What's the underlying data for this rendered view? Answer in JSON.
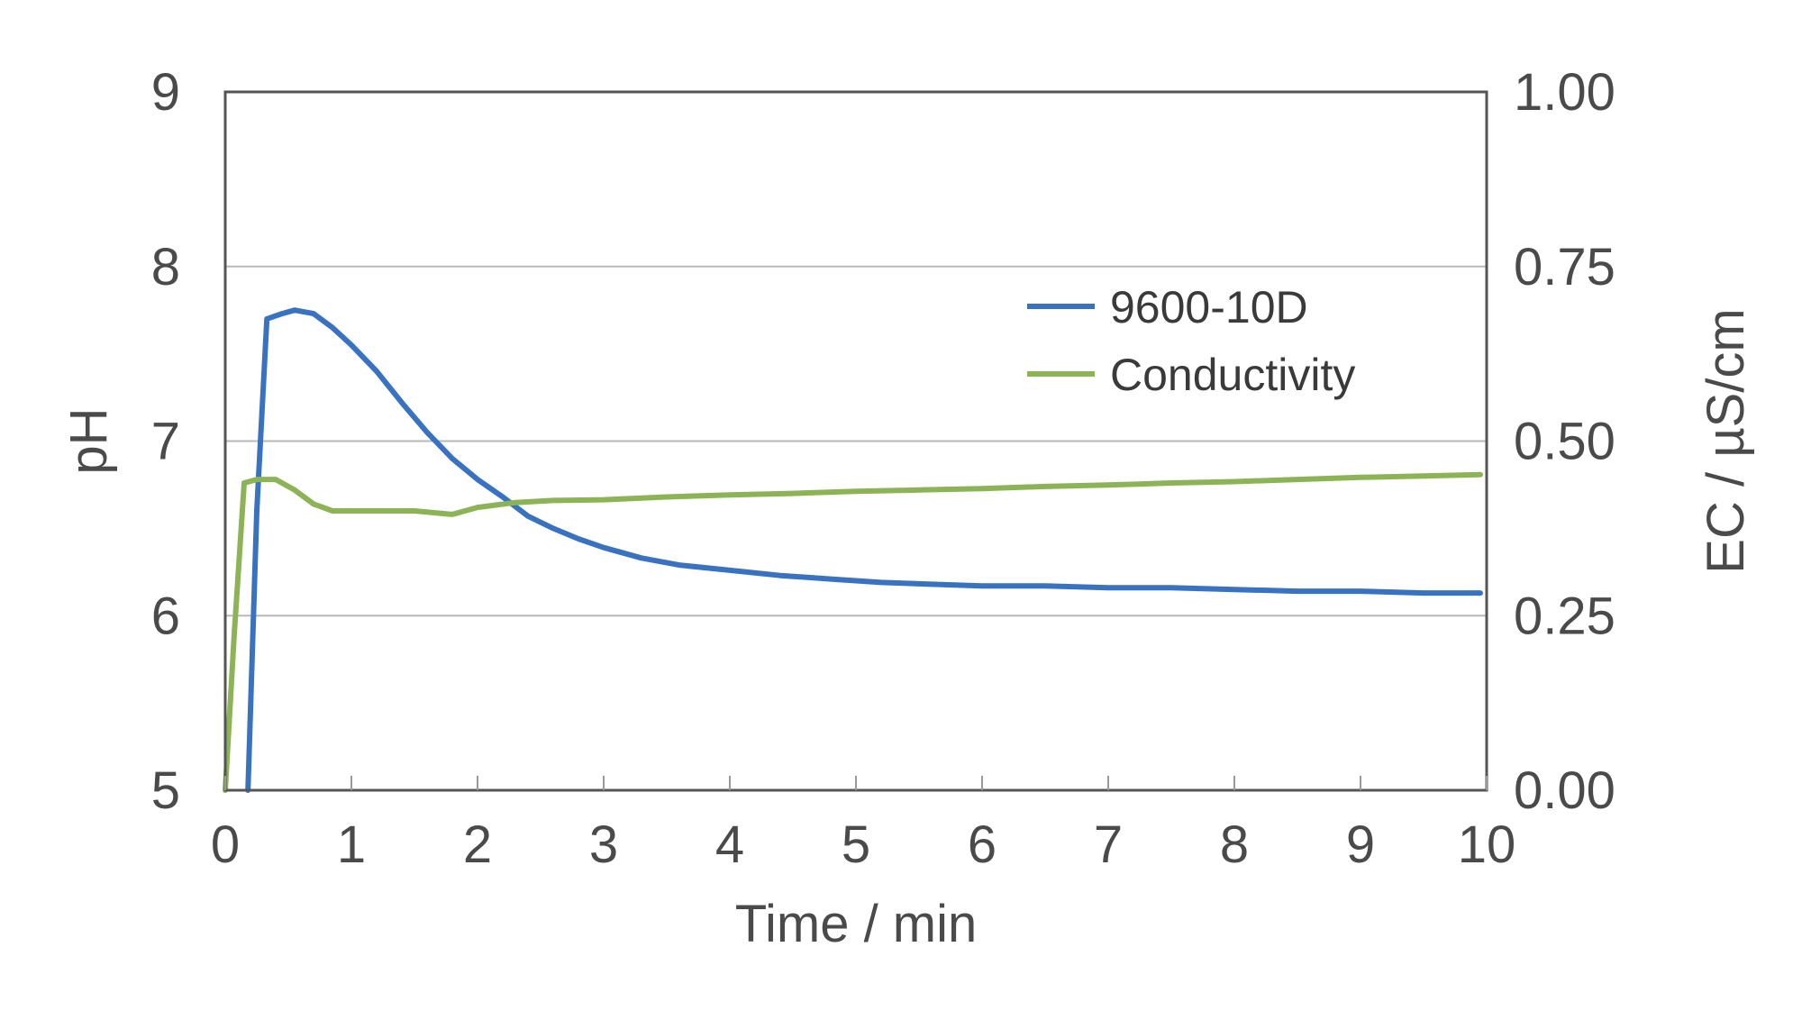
{
  "chart_data": {
    "type": "line",
    "title": "",
    "xlabel": "Time / min",
    "ylabel": "pH",
    "y2label": "EC / µS/cm",
    "xlim": [
      0,
      10
    ],
    "ylim": [
      5,
      9
    ],
    "y2lim": [
      0,
      1
    ],
    "x_ticks": [
      "0",
      "1",
      "2",
      "3",
      "4",
      "5",
      "6",
      "7",
      "8",
      "9",
      "10"
    ],
    "y_ticks": [
      "5",
      "6",
      "7",
      "8",
      "9"
    ],
    "y2_ticks": [
      "0.00",
      "0.25",
      "0.50",
      "0.75",
      "1.00"
    ],
    "grid": "horizontal",
    "legend_position": "top-right",
    "series": [
      {
        "name": "9600-10D",
        "axis": "left",
        "color": "#3a72c2",
        "points": [
          [
            0.18,
            5.0
          ],
          [
            0.25,
            6.6
          ],
          [
            0.33,
            7.7
          ],
          [
            0.45,
            7.73
          ],
          [
            0.55,
            7.75
          ],
          [
            0.7,
            7.73
          ],
          [
            0.85,
            7.65
          ],
          [
            1.0,
            7.55
          ],
          [
            1.2,
            7.4
          ],
          [
            1.4,
            7.22
          ],
          [
            1.6,
            7.05
          ],
          [
            1.8,
            6.9
          ],
          [
            2.0,
            6.78
          ],
          [
            2.2,
            6.68
          ],
          [
            2.4,
            6.57
          ],
          [
            2.6,
            6.5
          ],
          [
            2.8,
            6.44
          ],
          [
            3.0,
            6.39
          ],
          [
            3.3,
            6.33
          ],
          [
            3.6,
            6.29
          ],
          [
            4.0,
            6.26
          ],
          [
            4.4,
            6.23
          ],
          [
            4.8,
            6.21
          ],
          [
            5.2,
            6.19
          ],
          [
            5.6,
            6.18
          ],
          [
            6.0,
            6.17
          ],
          [
            6.5,
            6.17
          ],
          [
            7.0,
            6.16
          ],
          [
            7.5,
            6.16
          ],
          [
            8.0,
            6.15
          ],
          [
            8.5,
            6.14
          ],
          [
            9.0,
            6.14
          ],
          [
            9.5,
            6.13
          ],
          [
            9.95,
            6.13
          ]
        ]
      },
      {
        "name": "Conductivity",
        "axis": "right",
        "color": "#8db357",
        "points": [
          [
            0.0,
            0.0
          ],
          [
            0.07,
            0.22
          ],
          [
            0.15,
            0.44
          ],
          [
            0.25,
            0.445
          ],
          [
            0.4,
            0.445
          ],
          [
            0.55,
            0.43
          ],
          [
            0.7,
            0.41
          ],
          [
            0.85,
            0.4
          ],
          [
            1.2,
            0.4
          ],
          [
            1.5,
            0.4
          ],
          [
            1.8,
            0.395
          ],
          [
            2.0,
            0.405
          ],
          [
            2.3,
            0.412
          ],
          [
            2.6,
            0.415
          ],
          [
            3.0,
            0.416
          ],
          [
            3.5,
            0.42
          ],
          [
            4.0,
            0.423
          ],
          [
            4.5,
            0.425
          ],
          [
            5.0,
            0.428
          ],
          [
            5.5,
            0.43
          ],
          [
            6.0,
            0.432
          ],
          [
            6.5,
            0.435
          ],
          [
            7.0,
            0.437
          ],
          [
            7.5,
            0.44
          ],
          [
            8.0,
            0.442
          ],
          [
            8.5,
            0.445
          ],
          [
            9.0,
            0.448
          ],
          [
            9.5,
            0.45
          ],
          [
            9.95,
            0.452
          ]
        ]
      }
    ]
  }
}
